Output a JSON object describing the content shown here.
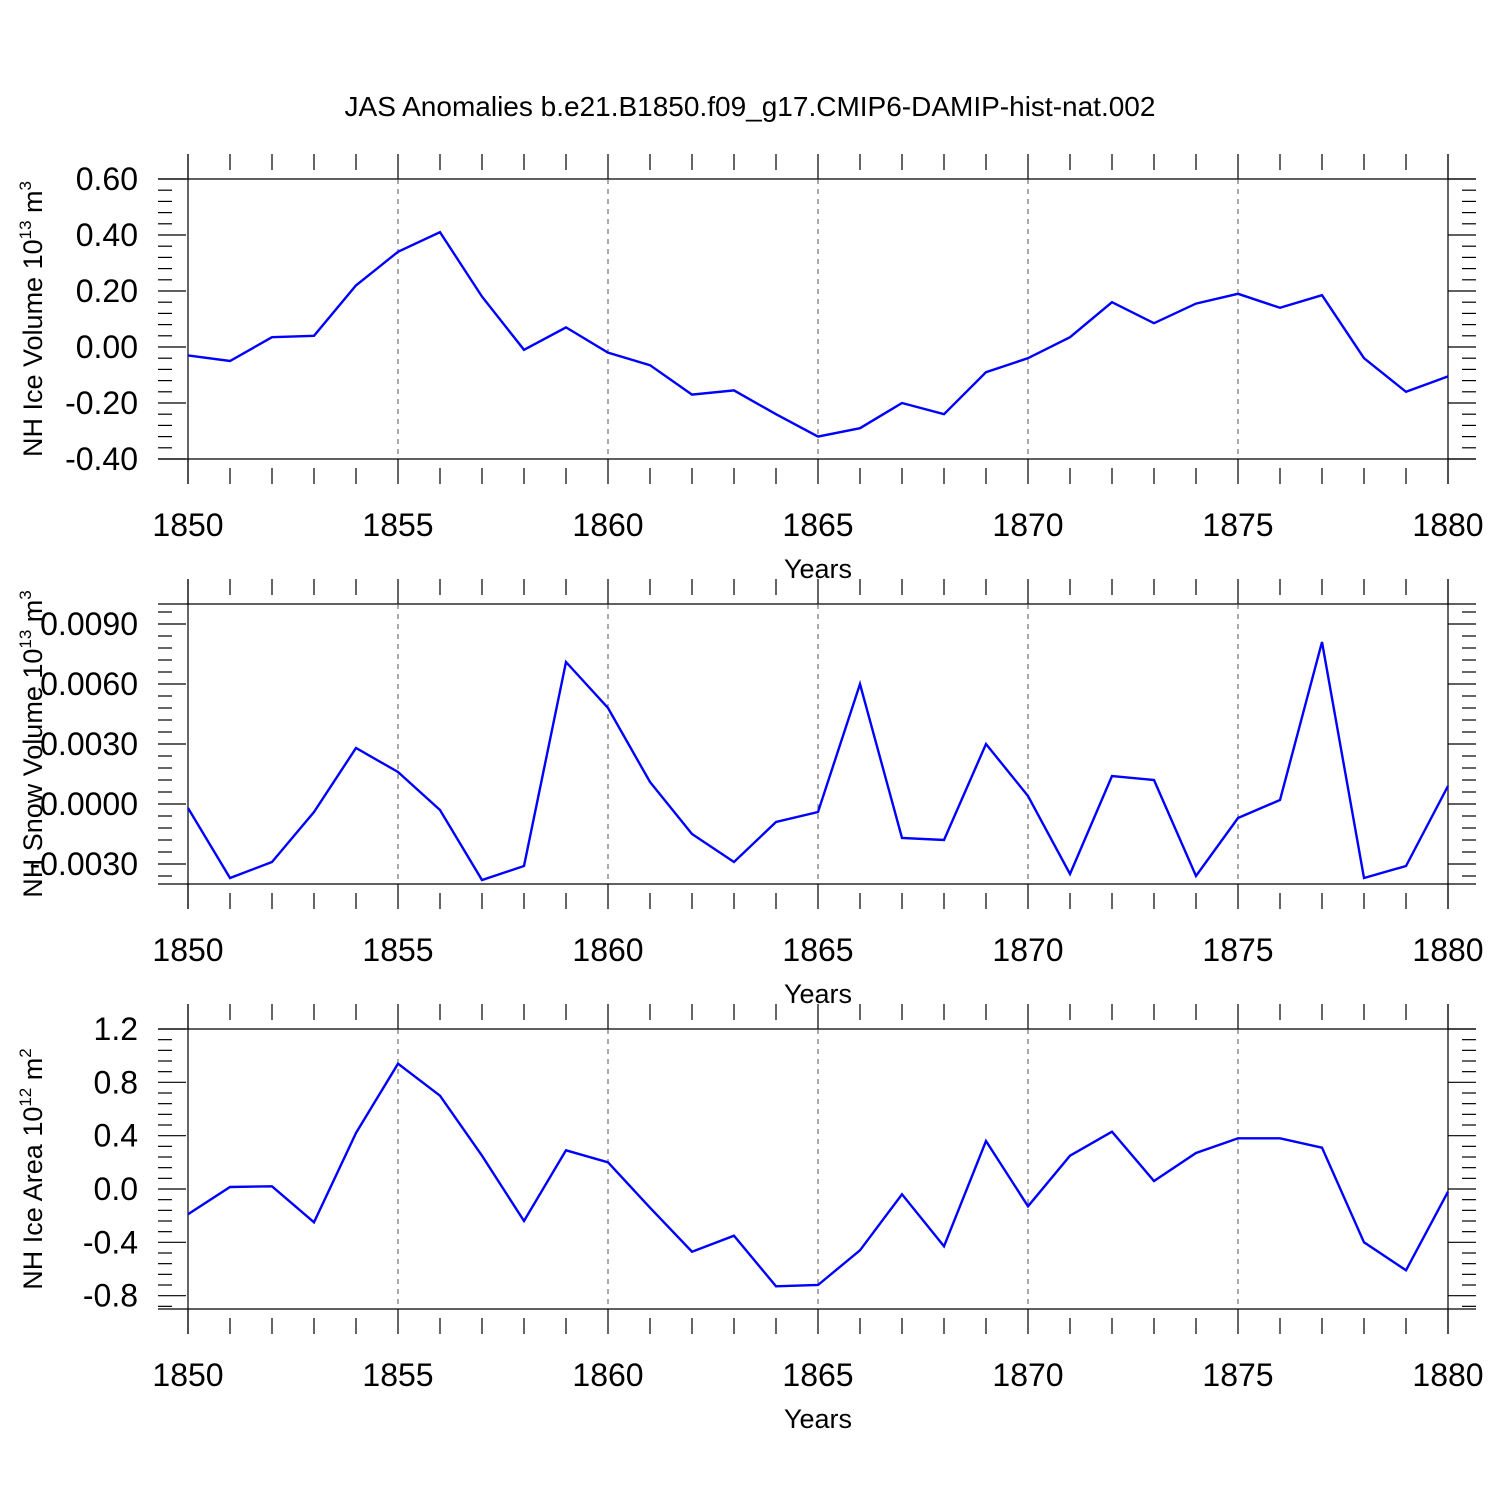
{
  "title": "JAS Anomalies b.e21.B1850.f09_g17.CMIP6-DAMIP-hist-nat.002",
  "colors": {
    "line": "#0000ff",
    "axis": "#000000",
    "grid": "#555555"
  },
  "chart_data": [
    {
      "type": "line",
      "ylabel": "NH Ice Volume 10^13 m^3",
      "ylabel_parts": {
        "text": "NH Ice Volume 10",
        "exp1": "13",
        "unit": " m",
        "exp2": "3"
      },
      "xlabel": "Years",
      "xlim": [
        1850,
        1880
      ],
      "ylim": [
        -0.4,
        0.6
      ],
      "x_ticks": [
        "1850",
        "1855",
        "1860",
        "1865",
        "1870",
        "1875",
        "1880"
      ],
      "y_ticks": [
        "0.60",
        "0.40",
        "0.20",
        "0.00",
        "-0.20",
        "-0.40"
      ],
      "grid": "vertical dashed at major x ticks",
      "x": [
        1850,
        1851,
        1852,
        1853,
        1854,
        1855,
        1856,
        1857,
        1858,
        1859,
        1860,
        1861,
        1862,
        1863,
        1864,
        1865,
        1866,
        1867,
        1868,
        1869,
        1870,
        1871,
        1872,
        1873,
        1874,
        1875,
        1876,
        1877,
        1878,
        1879,
        1880
      ],
      "values": [
        -0.03,
        -0.05,
        0.035,
        0.04,
        0.22,
        0.34,
        0.41,
        0.18,
        -0.01,
        0.07,
        -0.02,
        -0.065,
        -0.17,
        -0.155,
        -0.24,
        -0.32,
        -0.29,
        -0.2,
        -0.24,
        -0.09,
        -0.04,
        0.035,
        0.16,
        0.085,
        0.155,
        0.19,
        0.14,
        0.185,
        -0.04,
        -0.16,
        -0.105
      ]
    },
    {
      "type": "line",
      "ylabel": "NH Snow Volume 10^13 m^3",
      "ylabel_parts": {
        "text": "NH Snow Volume 10",
        "exp1": "13",
        "unit": " m",
        "exp2": "3"
      },
      "xlabel": "Years",
      "xlim": [
        1850,
        1880
      ],
      "ylim": [
        -0.004,
        0.01
      ],
      "x_ticks": [
        "1850",
        "1855",
        "1860",
        "1865",
        "1870",
        "1875",
        "1880"
      ],
      "y_ticks": [
        "0.0090",
        "0.0060",
        "0.0030",
        "0.0000",
        "-0.0030"
      ],
      "grid": "vertical dashed at major x ticks",
      "x": [
        1850,
        1851,
        1852,
        1853,
        1854,
        1855,
        1856,
        1857,
        1858,
        1859,
        1860,
        1861,
        1862,
        1863,
        1864,
        1865,
        1866,
        1867,
        1868,
        1869,
        1870,
        1871,
        1872,
        1873,
        1874,
        1875,
        1876,
        1877,
        1878,
        1879,
        1880
      ],
      "values": [
        -0.0002,
        -0.0037,
        -0.0029,
        -0.0004,
        0.0028,
        0.0016,
        -0.0003,
        -0.0038,
        -0.0031,
        0.0071,
        0.0048,
        0.0011,
        -0.0015,
        -0.0029,
        -0.0009,
        -0.0004,
        0.006,
        -0.0017,
        -0.0018,
        0.003,
        0.0004,
        -0.0035,
        0.0014,
        0.0012,
        -0.0036,
        -0.0007,
        0.0002,
        0.0081,
        -0.0037,
        -0.0031,
        0.0009
      ]
    },
    {
      "type": "line",
      "ylabel": "NH Ice Area 10^12 m^2",
      "ylabel_parts": {
        "text": "NH Ice Area 10",
        "exp1": "12",
        "unit": " m",
        "exp2": "2"
      },
      "xlabel": "Years",
      "xlim": [
        1850,
        1880
      ],
      "ylim": [
        -0.9,
        1.2
      ],
      "x_ticks": [
        "1850",
        "1855",
        "1860",
        "1865",
        "1870",
        "1875",
        "1880"
      ],
      "y_ticks": [
        "1.2",
        "0.8",
        "0.4",
        "0.0",
        "-0.4",
        "-0.8"
      ],
      "grid": "vertical dashed at major x ticks",
      "x": [
        1850,
        1851,
        1852,
        1853,
        1854,
        1855,
        1856,
        1857,
        1858,
        1859,
        1860,
        1861,
        1862,
        1863,
        1864,
        1865,
        1866,
        1867,
        1868,
        1869,
        1870,
        1871,
        1872,
        1873,
        1874,
        1875,
        1876,
        1877,
        1878,
        1879,
        1880
      ],
      "values": [
        -0.19,
        0.015,
        0.02,
        -0.25,
        0.42,
        0.94,
        0.7,
        0.25,
        -0.24,
        0.29,
        0.2,
        -0.14,
        -0.47,
        -0.35,
        -0.73,
        -0.72,
        -0.46,
        -0.04,
        -0.43,
        0.36,
        -0.13,
        0.25,
        0.43,
        0.06,
        0.27,
        0.38,
        0.38,
        0.31,
        -0.4,
        -0.61,
        -0.02
      ]
    }
  ]
}
